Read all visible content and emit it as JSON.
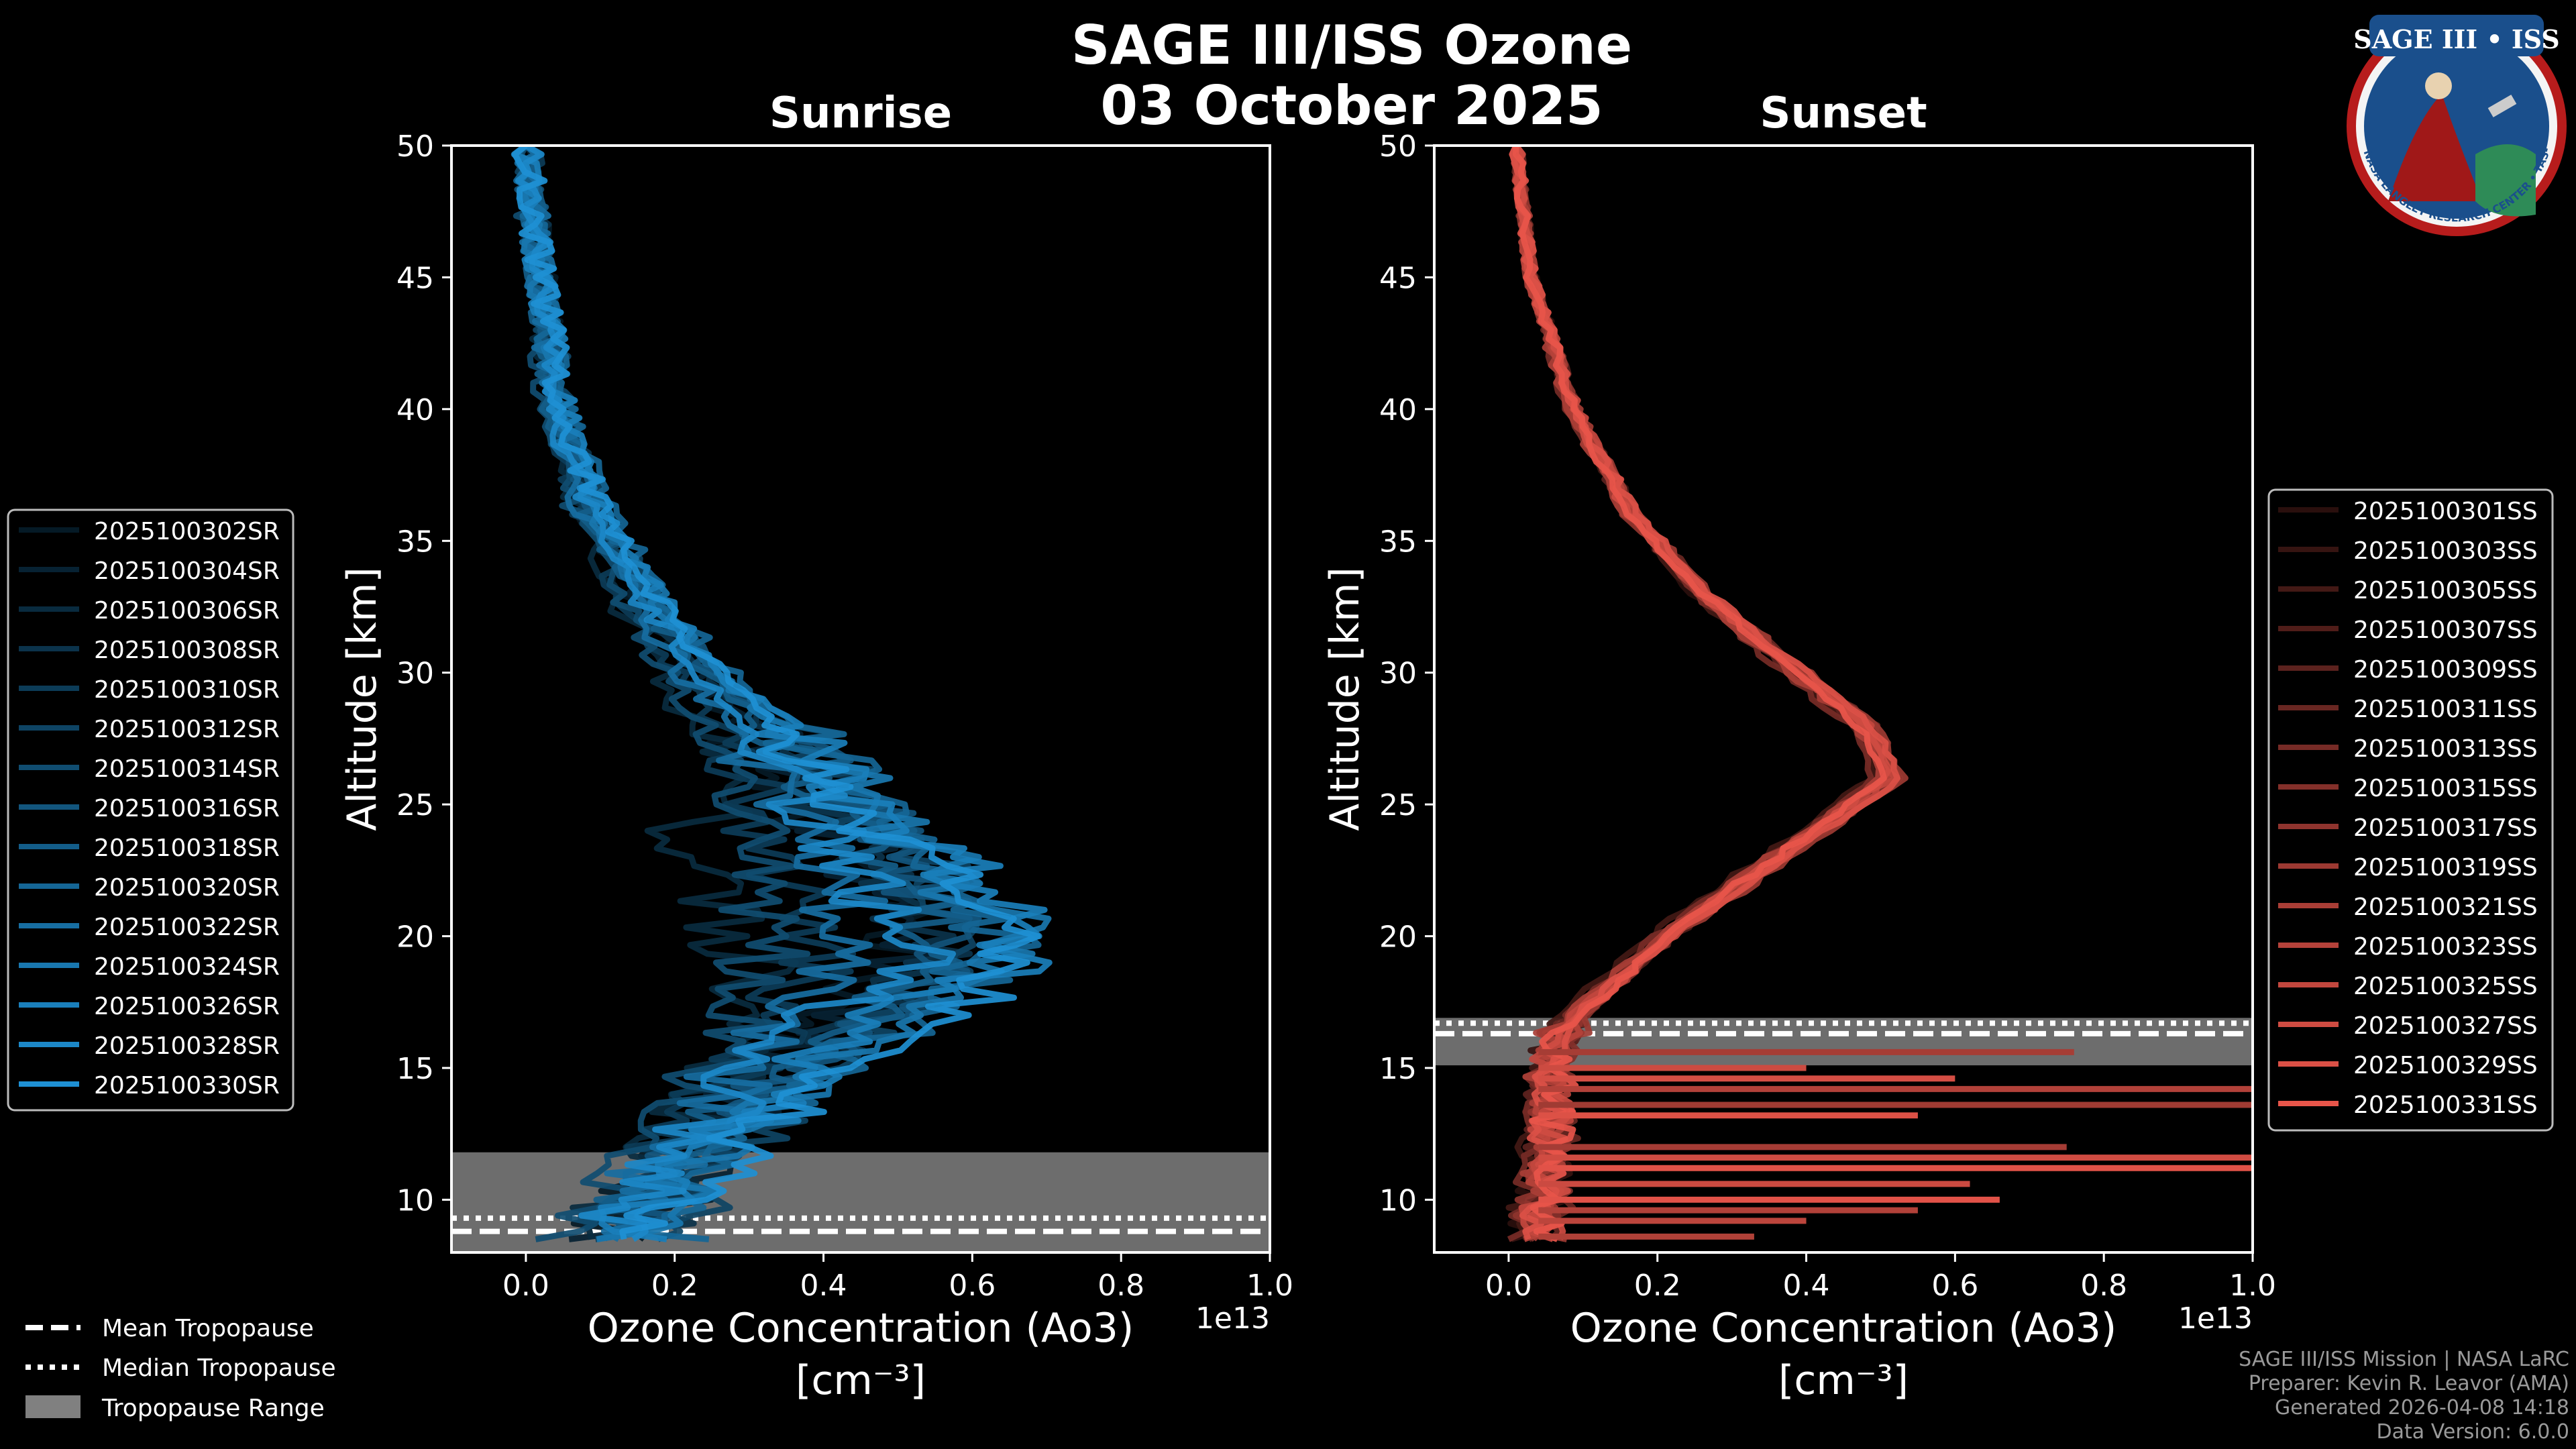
{
  "figure": {
    "title_line1": "SAGE III/ISS Ozone",
    "title_line2": "03 October 2025",
    "credits": [
      "SAGE III/ISS Mission | NASA LaRC",
      "Preparer: Kevin R. Leavor (AMA)",
      "Generated 2026-04-08 14:18",
      "Data Version: 6.0.0"
    ],
    "logo_text": "SAGE III • ISS",
    "logo_ring_text": "BALL • NASA LANGLEY RESEARCH CENTER • TAS-I • ESA",
    "tropo_legend": [
      "Mean Tropopause",
      "Median Tropopause",
      "Tropopause Range"
    ],
    "colors": {
      "sunrise": "#1e90d4",
      "sunset": "#e8554a",
      "tropo_range": "#808080",
      "background": "#000000"
    }
  },
  "chart_data": [
    {
      "type": "line",
      "title": "Sunrise",
      "xlabel_line1": "Ozone Concentration (Ao3)",
      "xlabel_line2": "[cm⁻³]",
      "ylabel": "Altitude [km]",
      "x_offset_label": "1e13",
      "xlim": [
        -0.1,
        1.0
      ],
      "ylim": [
        8,
        50
      ],
      "xticks": [
        "0.0",
        "0.2",
        "0.4",
        "0.6",
        "0.8",
        "1.0"
      ],
      "yticks": [
        "10",
        "15",
        "20",
        "25",
        "30",
        "35",
        "40",
        "45",
        "50"
      ],
      "tropopause": {
        "mean_km": 8.8,
        "median_km": 9.3,
        "range_km": [
          8.0,
          11.8
        ]
      },
      "series_names": [
        "2025100302SR",
        "2025100304SR",
        "2025100306SR",
        "2025100308SR",
        "2025100310SR",
        "2025100312SR",
        "2025100314SR",
        "2025100316SR",
        "2025100318SR",
        "2025100320SR",
        "2025100322SR",
        "2025100324SR",
        "2025100326SR",
        "2025100328SR",
        "2025100330SR"
      ],
      "profile_altitudes_km": [
        8.5,
        10,
        12,
        14,
        16,
        17,
        18,
        19,
        20,
        22,
        25,
        28,
        30,
        33,
        36,
        40,
        45,
        50
      ],
      "series": [
        {
          "name": "2025100302SR",
          "values": [
            0.1,
            0.16,
            0.22,
            0.28,
            0.34,
            0.4,
            0.45,
            0.48,
            0.5,
            0.46,
            0.38,
            0.28,
            0.22,
            0.14,
            0.08,
            0.04,
            0.02,
            0.0
          ]
        },
        {
          "name": "2025100304SR",
          "values": [
            0.12,
            0.18,
            0.24,
            0.3,
            0.36,
            0.42,
            0.46,
            0.5,
            0.52,
            0.48,
            0.4,
            0.3,
            0.23,
            0.15,
            0.09,
            0.04,
            0.02,
            0.0
          ]
        },
        {
          "name": "2025100306SR",
          "values": [
            0.08,
            0.14,
            0.2,
            0.24,
            0.28,
            0.3,
            0.32,
            0.3,
            0.28,
            0.22,
            0.24,
            0.22,
            0.18,
            0.12,
            0.07,
            0.03,
            0.01,
            0.0
          ]
        },
        {
          "name": "2025100308SR",
          "values": [
            0.14,
            0.2,
            0.26,
            0.34,
            0.42,
            0.48,
            0.52,
            0.54,
            0.55,
            0.5,
            0.42,
            0.32,
            0.24,
            0.16,
            0.1,
            0.05,
            0.02,
            0.0
          ]
        },
        {
          "name": "2025100310SR",
          "values": [
            0.1,
            0.15,
            0.2,
            0.26,
            0.3,
            0.34,
            0.36,
            0.38,
            0.4,
            0.36,
            0.3,
            0.26,
            0.2,
            0.13,
            0.08,
            0.04,
            0.02,
            0.0
          ]
        },
        {
          "name": "2025100312SR",
          "values": [
            0.16,
            0.22,
            0.28,
            0.36,
            0.44,
            0.5,
            0.56,
            0.6,
            0.62,
            0.56,
            0.46,
            0.34,
            0.26,
            0.17,
            0.1,
            0.05,
            0.02,
            0.0
          ]
        },
        {
          "name": "2025100314SR",
          "values": [
            0.06,
            0.12,
            0.18,
            0.22,
            0.26,
            0.28,
            0.3,
            0.32,
            0.34,
            0.3,
            0.28,
            0.24,
            0.19,
            0.12,
            0.07,
            0.03,
            0.01,
            0.0
          ]
        },
        {
          "name": "2025100316SR",
          "values": [
            0.12,
            0.18,
            0.24,
            0.32,
            0.4,
            0.46,
            0.52,
            0.56,
            0.58,
            0.54,
            0.44,
            0.33,
            0.25,
            0.16,
            0.09,
            0.05,
            0.02,
            0.0
          ]
        },
        {
          "name": "2025100318SR",
          "values": [
            0.1,
            0.16,
            0.22,
            0.3,
            0.38,
            0.44,
            0.5,
            0.54,
            0.56,
            0.52,
            0.43,
            0.32,
            0.24,
            0.15,
            0.09,
            0.04,
            0.02,
            0.0
          ]
        },
        {
          "name": "2025100320SR",
          "values": [
            0.18,
            0.24,
            0.3,
            0.38,
            0.46,
            0.52,
            0.58,
            0.62,
            0.64,
            0.58,
            0.48,
            0.35,
            0.27,
            0.18,
            0.11,
            0.05,
            0.02,
            0.0
          ]
        },
        {
          "name": "2025100322SR",
          "values": [
            0.08,
            0.14,
            0.2,
            0.26,
            0.32,
            0.36,
            0.4,
            0.42,
            0.44,
            0.4,
            0.34,
            0.28,
            0.21,
            0.14,
            0.08,
            0.04,
            0.02,
            0.0
          ]
        },
        {
          "name": "2025100324SR",
          "values": [
            0.14,
            0.2,
            0.28,
            0.36,
            0.44,
            0.5,
            0.56,
            0.62,
            0.66,
            0.58,
            0.46,
            0.34,
            0.26,
            0.17,
            0.1,
            0.05,
            0.02,
            0.0
          ]
        },
        {
          "name": "2025100326SR",
          "values": [
            0.12,
            0.18,
            0.26,
            0.34,
            0.42,
            0.5,
            0.58,
            0.66,
            0.68,
            0.6,
            0.47,
            0.35,
            0.26,
            0.17,
            0.1,
            0.05,
            0.02,
            0.0
          ]
        },
        {
          "name": "2025100328SR",
          "values": [
            0.1,
            0.16,
            0.22,
            0.28,
            0.34,
            0.4,
            0.46,
            0.5,
            0.52,
            0.46,
            0.38,
            0.3,
            0.23,
            0.15,
            0.09,
            0.04,
            0.02,
            0.0
          ]
        },
        {
          "name": "2025100330SR",
          "values": [
            0.14,
            0.2,
            0.28,
            0.38,
            0.48,
            0.56,
            0.62,
            0.66,
            0.64,
            0.56,
            0.45,
            0.34,
            0.26,
            0.17,
            0.1,
            0.05,
            0.02,
            0.0
          ]
        }
      ]
    },
    {
      "type": "line",
      "title": "Sunset",
      "xlabel_line1": "Ozone Concentration (Ao3)",
      "xlabel_line2": "[cm⁻³]",
      "ylabel": "Altitude [km]",
      "x_offset_label": "1e13",
      "xlim": [
        -0.1,
        1.0
      ],
      "ylim": [
        8,
        50
      ],
      "xticks": [
        "0.0",
        "0.2",
        "0.4",
        "0.6",
        "0.8",
        "1.0"
      ],
      "yticks": [
        "10",
        "15",
        "20",
        "25",
        "30",
        "35",
        "40",
        "45",
        "50"
      ],
      "tropopause": {
        "mean_km": 16.3,
        "median_km": 16.7,
        "range_km": [
          15.1,
          16.9
        ]
      },
      "series_names": [
        "2025100301SS",
        "2025100303SS",
        "2025100305SS",
        "2025100307SS",
        "2025100309SS",
        "2025100311SS",
        "2025100313SS",
        "2025100315SS",
        "2025100317SS",
        "2025100319SS",
        "2025100321SS",
        "2025100323SS",
        "2025100325SS",
        "2025100327SS",
        "2025100329SS",
        "2025100331SS"
      ],
      "profile_altitudes_km": [
        8.5,
        10,
        12,
        14,
        16,
        17,
        18,
        20,
        22,
        24,
        26,
        28,
        30,
        33,
        36,
        40,
        45,
        50
      ],
      "series": [
        {
          "name": "2025100301SS",
          "values": [
            0.02,
            0.04,
            0.05,
            0.04,
            0.05,
            0.08,
            0.12,
            0.2,
            0.3,
            0.4,
            0.5,
            0.47,
            0.38,
            0.25,
            0.16,
            0.09,
            0.03,
            0.01
          ]
        },
        {
          "name": "2025100303SS",
          "values": [
            0.03,
            0.05,
            0.06,
            0.05,
            0.06,
            0.09,
            0.13,
            0.21,
            0.31,
            0.41,
            0.51,
            0.48,
            0.39,
            0.26,
            0.17,
            0.09,
            0.03,
            0.01
          ]
        },
        {
          "name": "2025100305SS",
          "values": [
            0.02,
            0.03,
            0.04,
            0.05,
            0.05,
            0.07,
            0.11,
            0.19,
            0.29,
            0.39,
            0.49,
            0.46,
            0.38,
            0.25,
            0.16,
            0.08,
            0.03,
            0.01
          ]
        },
        {
          "name": "2025100307SS",
          "values": [
            0.04,
            0.05,
            0.06,
            0.06,
            0.07,
            0.1,
            0.14,
            0.22,
            0.32,
            0.42,
            0.52,
            0.48,
            0.39,
            0.26,
            0.17,
            0.09,
            0.03,
            0.01
          ]
        },
        {
          "name": "2025100309SS",
          "values": [
            0.03,
            0.04,
            0.05,
            0.05,
            0.06,
            0.09,
            0.13,
            0.21,
            0.31,
            0.41,
            0.5,
            0.47,
            0.38,
            0.26,
            0.16,
            0.09,
            0.03,
            0.01
          ]
        },
        {
          "name": "2025100311SS",
          "values": [
            0.05,
            0.06,
            0.07,
            0.06,
            0.07,
            0.1,
            0.14,
            0.22,
            0.32,
            0.42,
            0.53,
            0.49,
            0.4,
            0.27,
            0.17,
            0.09,
            0.03,
            0.01
          ]
        },
        {
          "name": "2025100313SS",
          "values": [
            0.02,
            0.03,
            0.05,
            0.04,
            0.05,
            0.08,
            0.12,
            0.2,
            0.3,
            0.4,
            0.49,
            0.46,
            0.37,
            0.25,
            0.16,
            0.08,
            0.03,
            0.01
          ]
        },
        {
          "name": "2025100315SS",
          "values": [
            0.04,
            0.05,
            0.07,
            0.06,
            0.07,
            0.1,
            0.14,
            0.22,
            0.32,
            0.42,
            0.52,
            0.48,
            0.39,
            0.26,
            0.17,
            0.09,
            0.03,
            0.01
          ]
        },
        {
          "name": "2025100317SS",
          "values": [
            0.03,
            0.04,
            0.06,
            0.05,
            0.06,
            0.09,
            0.13,
            0.21,
            0.31,
            0.41,
            0.51,
            0.48,
            0.39,
            0.26,
            0.16,
            0.09,
            0.03,
            0.01
          ]
        },
        {
          "name": "2025100319SS",
          "values": [
            0.05,
            0.06,
            0.07,
            0.06,
            0.07,
            0.1,
            0.14,
            0.22,
            0.33,
            0.43,
            0.53,
            0.49,
            0.4,
            0.27,
            0.17,
            0.09,
            0.03,
            0.01
          ]
        },
        {
          "name": "2025100321SS",
          "values": [
            0.02,
            0.04,
            0.05,
            0.05,
            0.05,
            0.08,
            0.12,
            0.2,
            0.3,
            0.4,
            0.5,
            0.47,
            0.38,
            0.25,
            0.16,
            0.08,
            0.03,
            0.01
          ]
        },
        {
          "name": "2025100323SS",
          "values": [
            0.04,
            0.05,
            0.06,
            0.06,
            0.06,
            0.09,
            0.13,
            0.21,
            0.31,
            0.41,
            0.51,
            0.48,
            0.39,
            0.26,
            0.17,
            0.09,
            0.03,
            0.01
          ]
        },
        {
          "name": "2025100325SS",
          "values": [
            0.03,
            0.05,
            0.06,
            0.05,
            0.06,
            0.09,
            0.13,
            0.22,
            0.32,
            0.42,
            0.52,
            0.48,
            0.39,
            0.26,
            0.17,
            0.09,
            0.03,
            0.01
          ]
        },
        {
          "name": "2025100327SS",
          "values": [
            0.05,
            0.06,
            0.07,
            0.06,
            0.07,
            0.1,
            0.14,
            0.21,
            0.31,
            0.41,
            0.51,
            0.48,
            0.39,
            0.26,
            0.16,
            0.09,
            0.03,
            0.01
          ]
        },
        {
          "name": "2025100329SS",
          "values": [
            0.03,
            0.04,
            0.05,
            0.05,
            0.06,
            0.09,
            0.13,
            0.22,
            0.32,
            0.42,
            0.53,
            0.49,
            0.4,
            0.27,
            0.17,
            0.09,
            0.03,
            0.01
          ]
        },
        {
          "name": "2025100331SS",
          "values": [
            0.04,
            0.05,
            0.06,
            0.06,
            0.07,
            0.1,
            0.14,
            0.21,
            0.31,
            0.41,
            0.5,
            0.47,
            0.38,
            0.26,
            0.16,
            0.09,
            0.03,
            0.01
          ]
        }
      ],
      "spikes": [
        {
          "y": 8.6,
          "x": 0.33
        },
        {
          "y": 9.2,
          "x": 0.4
        },
        {
          "y": 9.6,
          "x": 0.55
        },
        {
          "y": 10.0,
          "x": 0.66
        },
        {
          "y": 10.6,
          "x": 0.62
        },
        {
          "y": 11.2,
          "x": 1.0
        },
        {
          "y": 11.6,
          "x": 1.0
        },
        {
          "y": 12.0,
          "x": 0.75
        },
        {
          "y": 13.2,
          "x": 0.55
        },
        {
          "y": 13.6,
          "x": 1.0
        },
        {
          "y": 14.2,
          "x": 1.0
        },
        {
          "y": 14.6,
          "x": 0.6
        },
        {
          "y": 15.0,
          "x": 0.4
        },
        {
          "y": 15.6,
          "x": 0.76
        }
      ]
    }
  ]
}
